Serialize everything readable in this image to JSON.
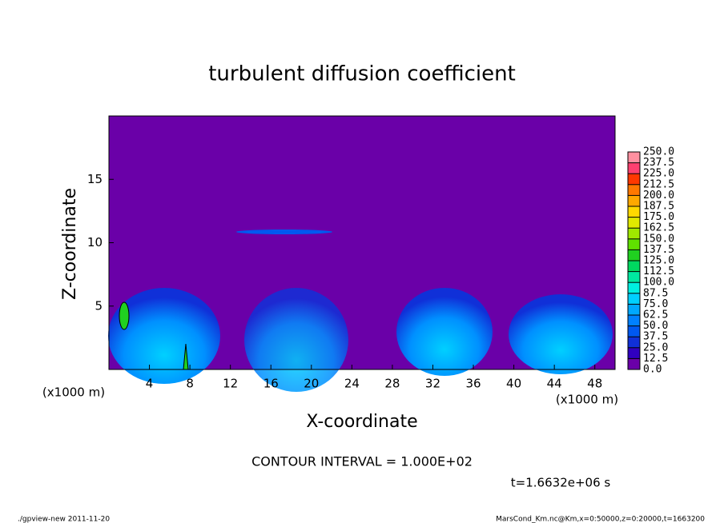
{
  "chart_data": {
    "type": "contour",
    "title": "turbulent diffusion coefficient",
    "x_label": "X-coordinate",
    "y_label": "Z-coordinate",
    "x_unit_label": "(x1000 m)",
    "y_unit_label": "(x1000 m)",
    "xlim": [
      0,
      50
    ],
    "xticks": [
      4,
      8,
      12,
      16,
      20,
      24,
      28,
      32,
      36,
      40,
      44,
      48
    ],
    "ylim": [
      0,
      20
    ],
    "yticks": [
      5,
      10,
      15
    ],
    "field_color": "#6a00a8",
    "colorbar": {
      "levels": [
        {
          "value": 0,
          "label": "0.0"
        },
        12.5,
        {
          "value": 25,
          "label": "25.0"
        },
        37.5,
        {
          "value": 50,
          "label": "50.0"
        },
        62.5,
        {
          "value": 75,
          "label": "75.0"
        },
        87.5,
        {
          "value": 100,
          "label": "100.0"
        },
        112.5,
        {
          "value": 125,
          "label": "125.0"
        },
        137.5,
        {
          "value": 150,
          "label": "150.0"
        },
        162.5,
        {
          "value": 175,
          "label": "175.0"
        },
        187.5,
        {
          "value": 200,
          "label": "200.0"
        },
        212.5,
        {
          "value": 225,
          "label": "225.0"
        },
        237.5,
        {
          "value": 250,
          "label": "250.0"
        }
      ],
      "colors": [
        "#6a00a8",
        "#3000c0",
        "#1030d8",
        "#0058f0",
        "#0080ff",
        "#00a8ff",
        "#00d0ff",
        "#00f0e0",
        "#00e8a0",
        "#00d860",
        "#20d020",
        "#60e000",
        "#a0e800",
        "#e0e800",
        "#ffd800",
        "#ffa800",
        "#ff7800",
        "#ff3800",
        "#ff4070",
        "#ff90a0"
      ]
    },
    "contour_interval": "CONTOUR INTERVAL = 1.000E+02",
    "time_label": "t=1.6632e+06 s",
    "footer_left": "./gpview-new   2011-11-20",
    "footer_right": "MarsCond_Km.nc@Km,x=0:50000,z=0:20000,t=1663200"
  }
}
